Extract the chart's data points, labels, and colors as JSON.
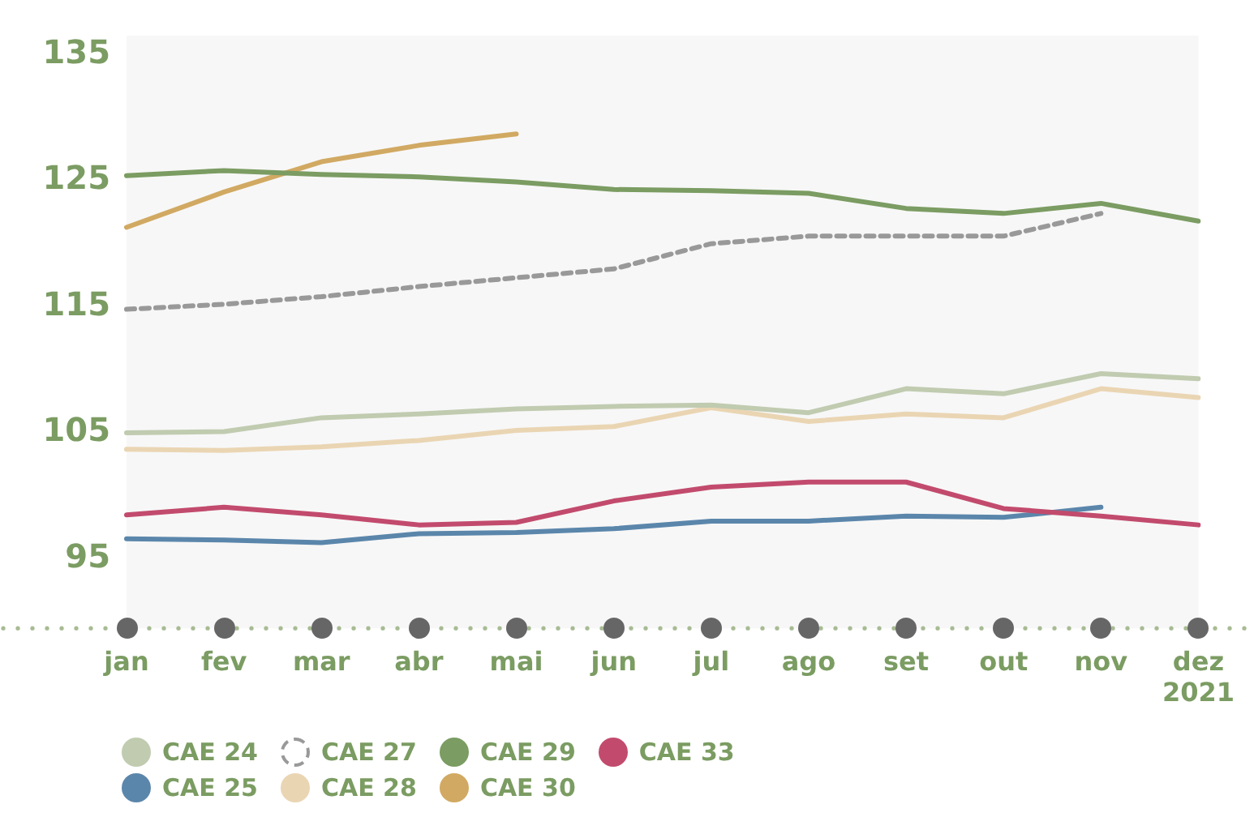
{
  "chart_data": {
    "type": "line",
    "categories": [
      "jan",
      "fev",
      "mar",
      "abr",
      "mai",
      "jun",
      "jul",
      "ago",
      "set",
      "out",
      "nov",
      "dez\n2021"
    ],
    "ylim": [
      89.5,
      136.5
    ],
    "yticks": [
      95,
      105,
      115,
      125,
      135
    ],
    "grid": false,
    "legend": "bottom",
    "marker": "none",
    "line_style": "solid",
    "series": [
      {
        "name": "CAE 24",
        "color": "#c0cbb0",
        "values": [
          105.0,
          105.1,
          106.2,
          106.5,
          106.9,
          107.1,
          107.2,
          106.6,
          108.5,
          108.1,
          109.7,
          109.3
        ]
      },
      {
        "name": "CAE 27",
        "color": "#999999",
        "line_style": "dashed",
        "values": [
          114.8,
          115.2,
          115.8,
          116.6,
          117.3,
          118.0,
          120.0,
          120.6,
          120.6,
          120.6,
          122.4,
          null
        ]
      },
      {
        "name": "CAE 29",
        "color": "#7b9c62",
        "values": [
          125.4,
          125.8,
          125.5,
          125.3,
          124.9,
          124.3,
          124.2,
          124.0,
          122.8,
          122.4,
          123.2,
          121.8
        ]
      },
      {
        "name": "CAE 33",
        "color": "#c24b6d",
        "values": [
          98.5,
          99.1,
          98.5,
          97.7,
          97.9,
          99.6,
          100.7,
          101.1,
          101.1,
          99.0,
          98.4,
          97.7
        ]
      },
      {
        "name": "CAE 25",
        "color": "#5b86ab",
        "values": [
          96.6,
          96.5,
          96.3,
          97.0,
          97.1,
          97.4,
          98.0,
          98.0,
          98.4,
          98.3,
          99.1,
          null
        ]
      },
      {
        "name": "CAE 28",
        "color": "#ead5b3",
        "values": [
          103.7,
          103.6,
          103.9,
          104.4,
          105.2,
          105.5,
          107.0,
          105.9,
          106.5,
          106.2,
          108.5,
          107.8
        ]
      },
      {
        "name": "CAE 30",
        "color": "#d1a962",
        "values": [
          121.3,
          124.1,
          126.5,
          127.8,
          128.7,
          null,
          null,
          null,
          null,
          null,
          null,
          null
        ]
      }
    ]
  }
}
